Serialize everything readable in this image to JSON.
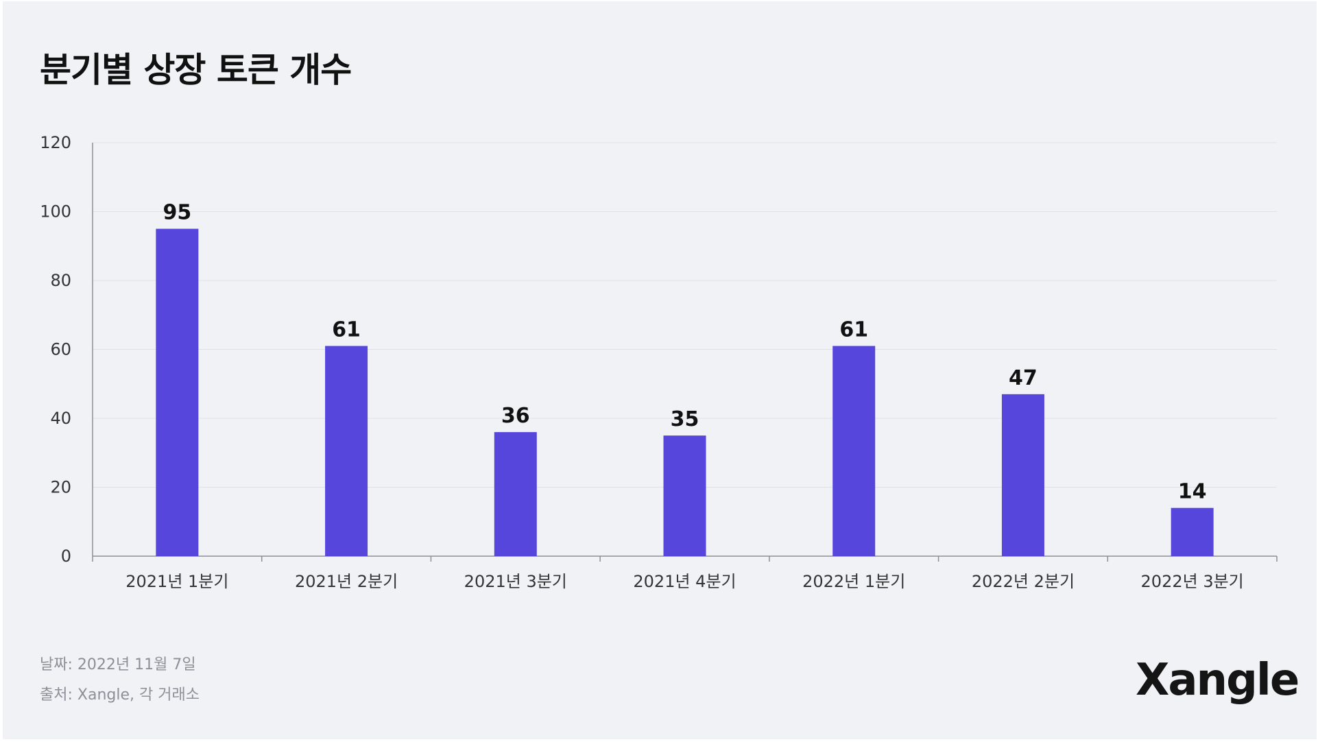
{
  "title": "분기별 상장 토큰 개수",
  "footer": {
    "date": "날짜: 2022년 11월 7일",
    "source": "출처: Xangle, 각 거래소"
  },
  "logo": "Xangle",
  "colors": {
    "bar": "#5646dc",
    "background": "#f1f2f6",
    "grid": "#dfe1e6",
    "axis": "#8d8f95",
    "tick_text": "#333333",
    "value_label": "#111111"
  },
  "chart_data": {
    "type": "bar",
    "title": "분기별 상장 토큰 개수",
    "categories": [
      "2021년 1분기",
      "2021년 2분기",
      "2021년 3분기",
      "2021년 4분기",
      "2022년 1분기",
      "2022년 2분기",
      "2022년 3분기"
    ],
    "values": [
      95,
      61,
      36,
      35,
      61,
      47,
      14
    ],
    "data_labels": [
      "95",
      "61",
      "36",
      "35",
      "61",
      "47",
      "14"
    ],
    "ylim": [
      0,
      120
    ],
    "yticks": [
      0,
      20,
      40,
      60,
      80,
      100,
      120
    ],
    "ytick_labels": [
      "0",
      "20",
      "40",
      "60",
      "80",
      "100",
      "120"
    ],
    "xlabel": "",
    "ylabel": "",
    "grid": true,
    "legend": "none"
  }
}
